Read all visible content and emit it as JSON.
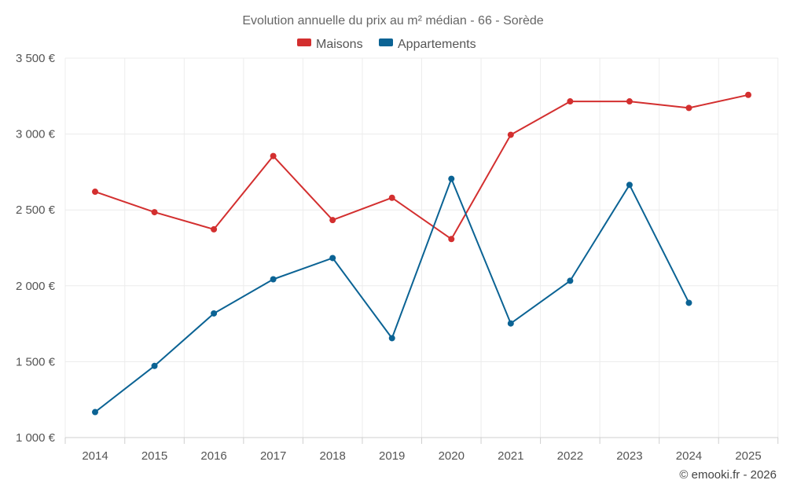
{
  "chart_data": {
    "type": "line",
    "title": "Evolution annuelle du prix au m² médian - 66 - Sorède",
    "categories": [
      "2014",
      "2015",
      "2016",
      "2017",
      "2018",
      "2019",
      "2020",
      "2021",
      "2022",
      "2023",
      "2024",
      "2025"
    ],
    "series": [
      {
        "name": "Maisons",
        "color": "#d32f2f",
        "values": [
          2620,
          2485,
          2372,
          2855,
          2433,
          2580,
          2308,
          2995,
          3215,
          3215,
          3172,
          3258
        ]
      },
      {
        "name": "Appartements",
        "color": "#0b6394",
        "values": [
          1168,
          1472,
          1818,
          2043,
          2183,
          1655,
          2705,
          1752,
          2033,
          2665,
          1888,
          null
        ]
      }
    ],
    "ylim": [
      1000,
      3500
    ],
    "yticks": [
      1000,
      1500,
      2000,
      2500,
      3000,
      3500
    ],
    "ytick_labels": [
      "1 000 €",
      "1 500 €",
      "2 000 €",
      "2 500 €",
      "3 000 €",
      "3 500 €"
    ],
    "grid": true,
    "legend_position": "top-center",
    "xlabel": "",
    "ylabel": ""
  },
  "credit": "© emooki.fr - 2026"
}
